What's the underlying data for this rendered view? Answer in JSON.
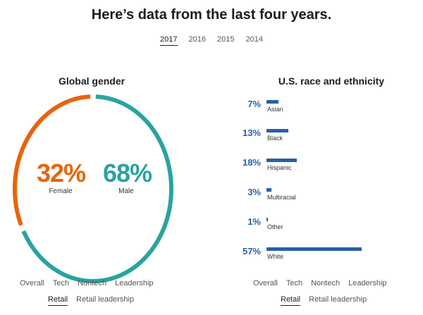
{
  "header": {
    "title": "Here’s data from the last four years."
  },
  "years": [
    {
      "label": "2017",
      "active": true
    },
    {
      "label": "2016",
      "active": false
    },
    {
      "label": "2015",
      "active": false
    },
    {
      "label": "2014",
      "active": false
    }
  ],
  "gender": {
    "title": "Global gender",
    "female": {
      "pct_label": "32%",
      "label": "Female",
      "value": 32,
      "color": "#e8640c"
    },
    "male": {
      "pct_label": "68%",
      "label": "Male",
      "value": 68,
      "color": "#2aa3a0"
    },
    "filters_row1": [
      "Overall",
      "Tech",
      "Nontech",
      "Leadership"
    ],
    "filters_row2": [
      "Retail",
      "Retail leadership"
    ],
    "active_filter": "Retail"
  },
  "race": {
    "title": "U.S. race and ethnicity",
    "bar_color": "#2a5fa6",
    "items": [
      {
        "pct_label": "7%",
        "value": 7,
        "name": "Asian"
      },
      {
        "pct_label": "13%",
        "value": 13,
        "name": "Black"
      },
      {
        "pct_label": "18%",
        "value": 18,
        "name": "Hispanic"
      },
      {
        "pct_label": "3%",
        "value": 3,
        "name": "Multiracial"
      },
      {
        "pct_label": "1%",
        "value": 1,
        "name": "Other"
      },
      {
        "pct_label": "57%",
        "value": 57,
        "name": "White"
      }
    ],
    "filters_row1": [
      "Overall",
      "Tech",
      "Nontech",
      "Leadership"
    ],
    "filters_row2": [
      "Retail",
      "Retail leadership"
    ],
    "active_filter": "Retail"
  }
}
